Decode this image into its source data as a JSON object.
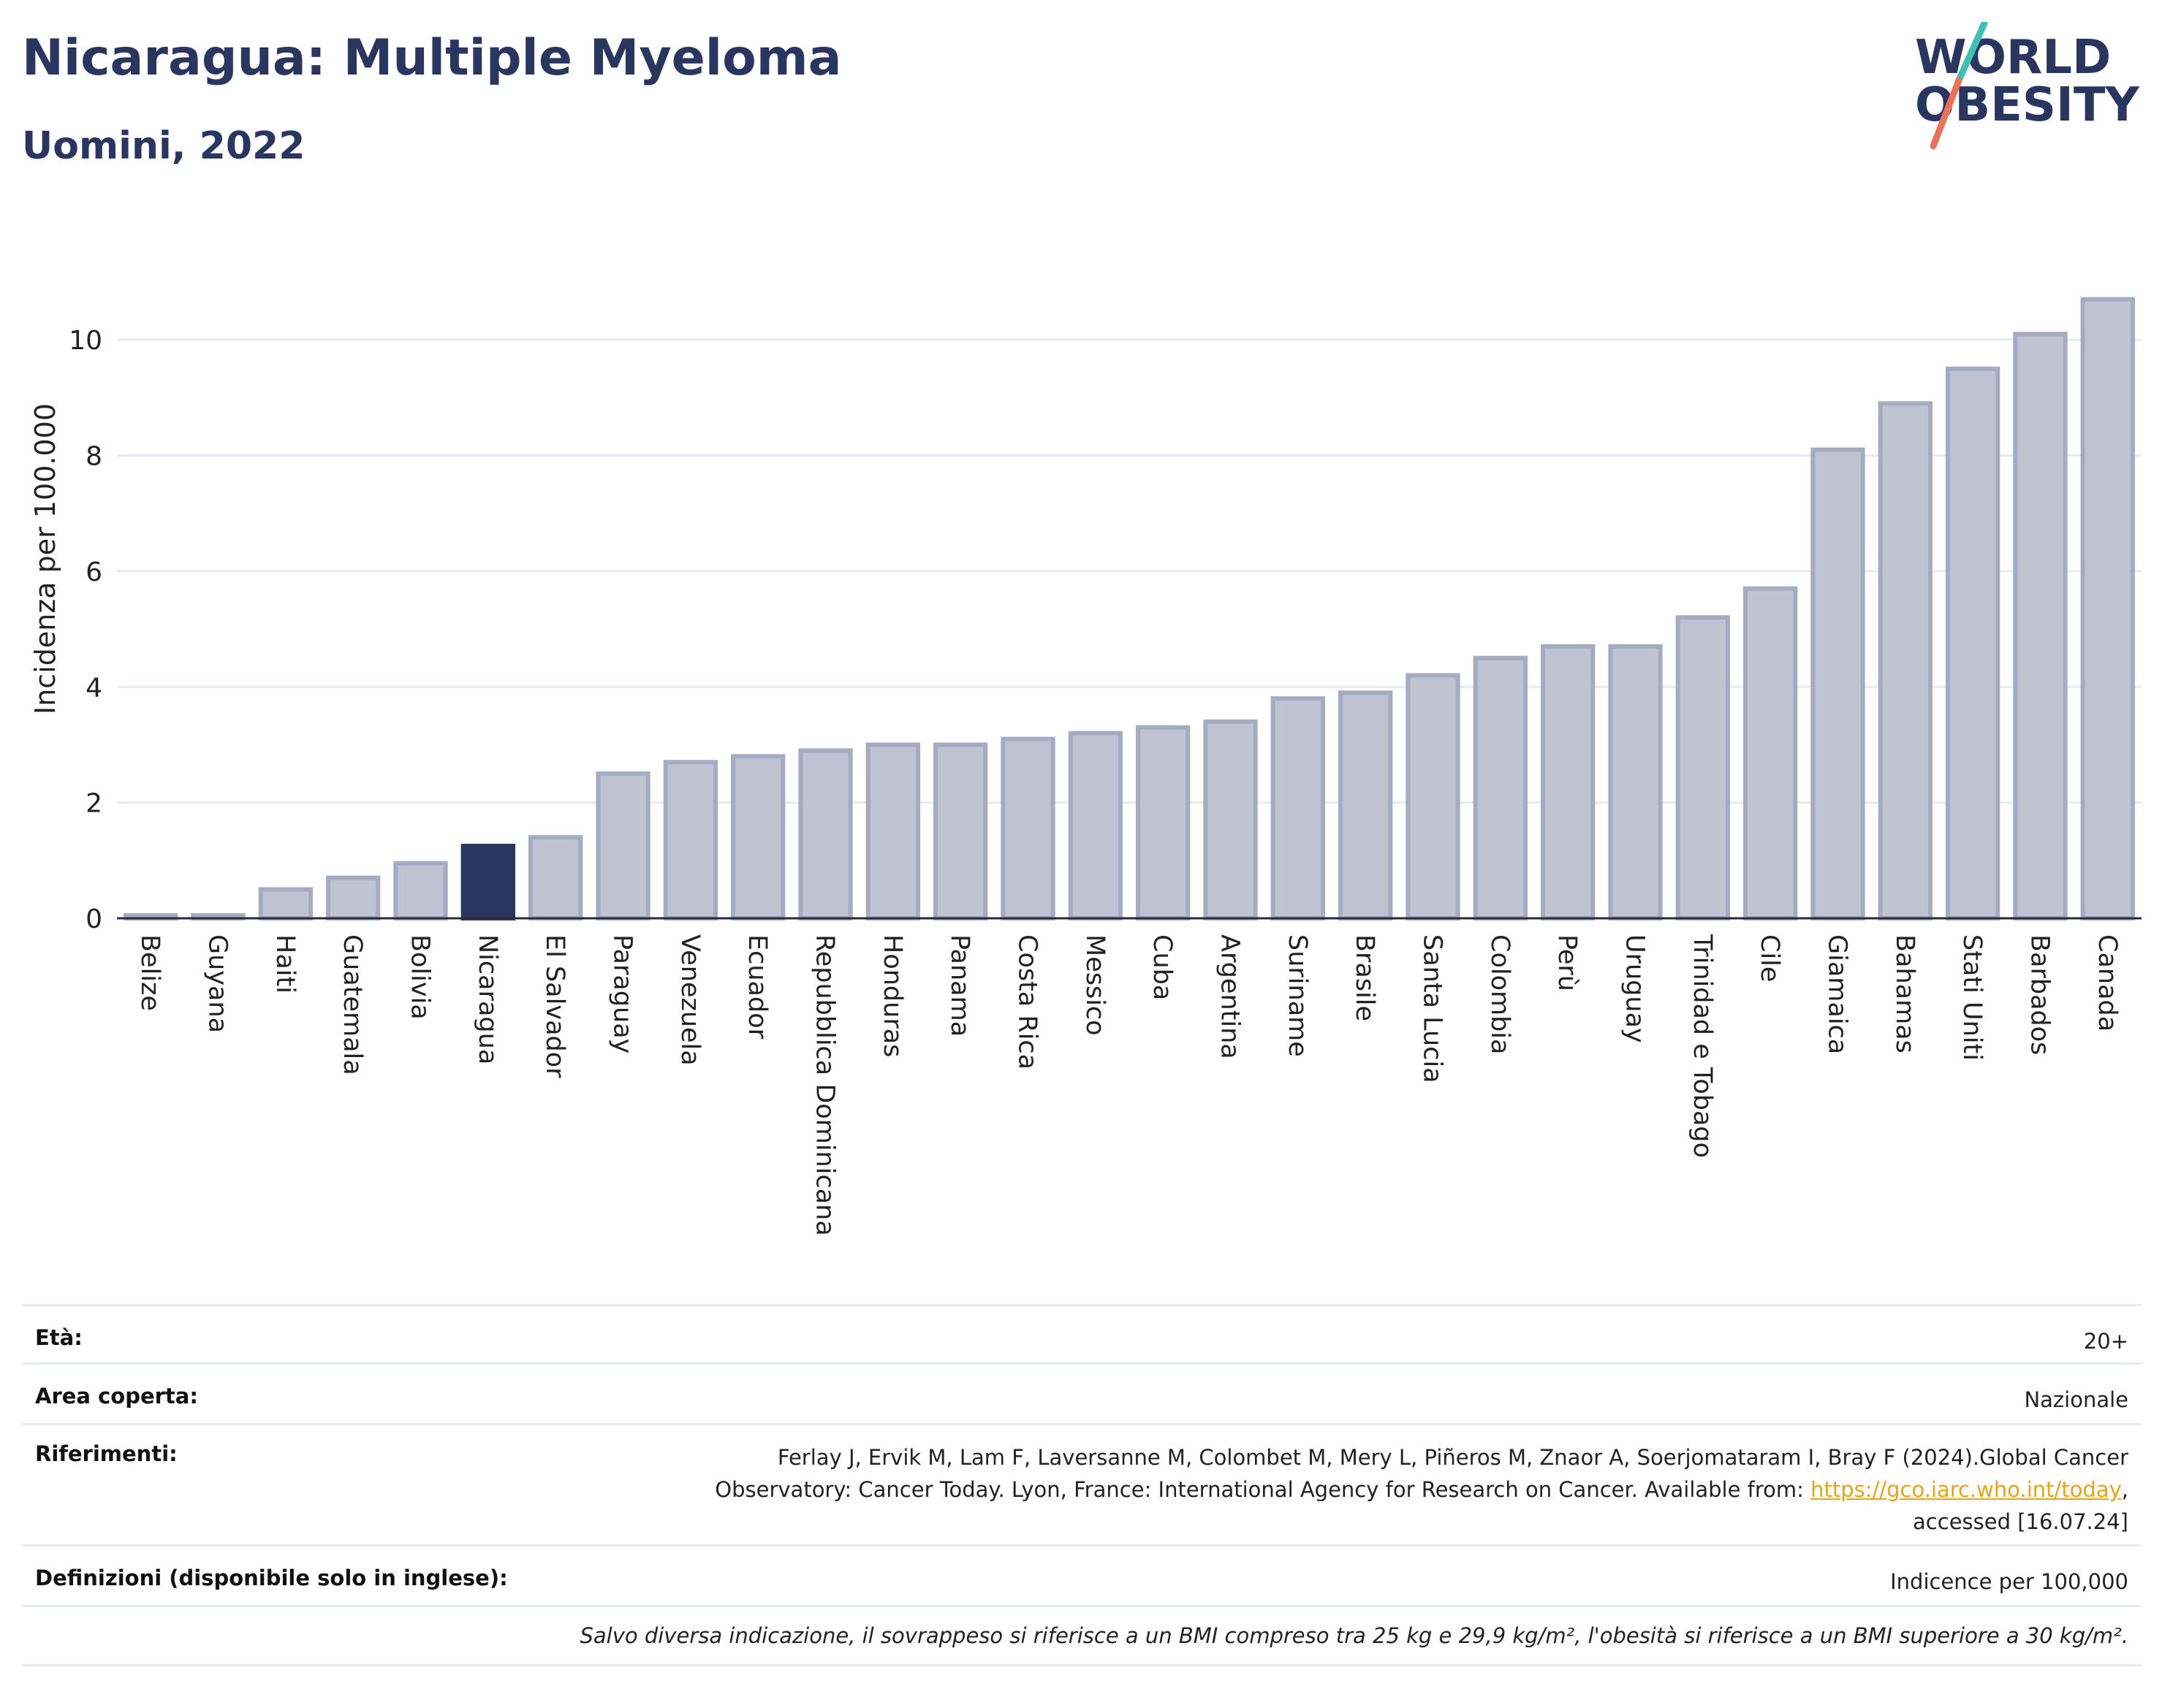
{
  "header": {
    "title": "Nicaragua: Multiple Myeloma",
    "subtitle": "Uomini, 2022",
    "logo_line1": "WORLD",
    "logo_line2": "OBESITY"
  },
  "colors": {
    "bar": "#c0c3d2",
    "bar_border": "#a7abc2",
    "highlight": "#2a3560",
    "grid": "#e8eaf2",
    "accent_teal": "#3fbfb6",
    "accent_coral": "#e8735a"
  },
  "chart_data": {
    "type": "bar",
    "ylabel": "Incidenza per 100.000",
    "ylim": [
      0,
      11
    ],
    "yticks": [
      0,
      2,
      4,
      6,
      8,
      10
    ],
    "grid": true,
    "highlight": "Nicaragua",
    "categories": [
      "Belize",
      "Guyana",
      "Haiti",
      "Guatemala",
      "Bolivia",
      "Nicaragua",
      "El Salvador",
      "Paraguay",
      "Venezuela",
      "Ecuador",
      "Repubblica Dominicana",
      "Honduras",
      "Panama",
      "Costa Rica",
      "Messico",
      "Cuba",
      "Argentina",
      "Suriname",
      "Brasile",
      "Santa Lucia",
      "Colombia",
      "Perù",
      "Uruguay",
      "Trinidad e Tobago",
      "Cile",
      "Giamaica",
      "Bahamas",
      "Stati Uniti",
      "Barbados",
      "Canada"
    ],
    "values": [
      0.05,
      0.05,
      0.5,
      0.7,
      0.95,
      1.25,
      1.4,
      2.5,
      2.7,
      2.8,
      2.9,
      3.0,
      3.0,
      3.1,
      3.2,
      3.3,
      3.4,
      3.8,
      3.9,
      4.2,
      4.5,
      4.7,
      4.7,
      5.2,
      5.7,
      8.1,
      8.9,
      9.5,
      10.1,
      10.7
    ]
  },
  "info": {
    "age_label": "Età:",
    "age_value": "20+",
    "area_label": "Area coperta:",
    "area_value": "Nazionale",
    "ref_label": "Riferimenti:",
    "ref_line1": "Ferlay J, Ervik M, Lam F, Laversanne M, Colombet M, Mery L, Piñeros M, Znaor A, Soerjomataram I, Bray F (2024).Global Cancer",
    "ref_line2_pre": "Observatory: Cancer Today. Lyon, France: International Agency for Research on Cancer. Available from: ",
    "ref_link": "https://gco.iarc.who.int/today",
    "ref_line2_post": ",",
    "ref_line3": "accessed [16.07.24]",
    "def_label": "Definizioni (disponibile solo in inglese):",
    "def_value": "Indicence per 100,000",
    "note": "Salvo diversa indicazione, il sovrappeso si riferisce a un BMI compreso tra 25 kg e 29,9 kg/m², l'obesità si riferisce a un BMI superiore a 30 kg/m²."
  }
}
